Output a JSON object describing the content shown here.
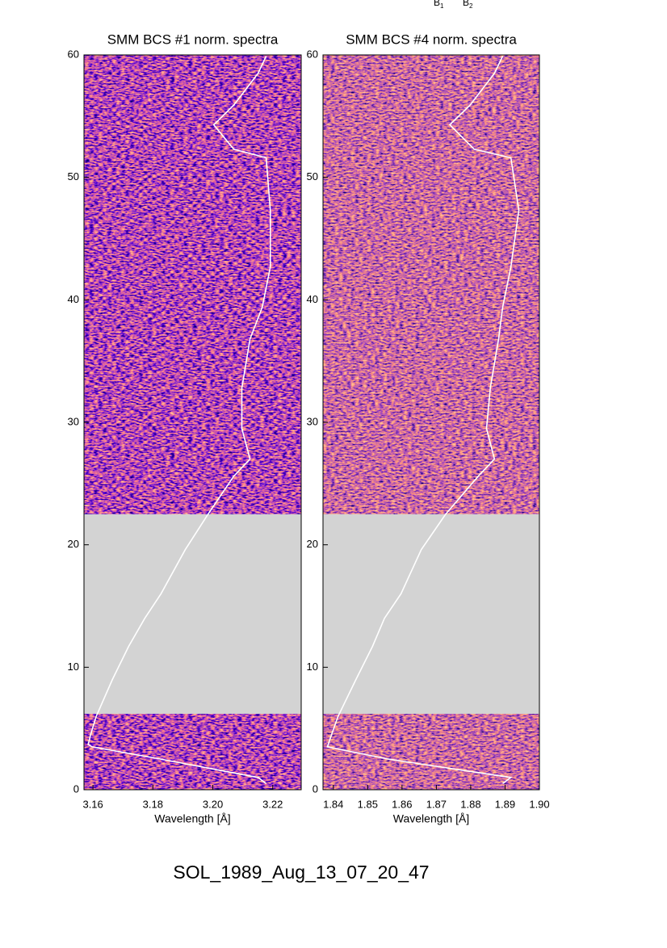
{
  "annotations": [
    {
      "text": "B",
      "sub": "1"
    },
    {
      "text": "B",
      "sub": "2"
    }
  ],
  "footer": "SOL_1989_Aug_13_07_20_47",
  "chart_data": [
    {
      "type": "line",
      "title": "SMM BCS #1 norm. spectra",
      "xlabel": "Wavelength [Å]",
      "xlim": [
        3.157,
        3.2295
      ],
      "xticks": [
        3.16,
        3.18,
        {
          "value": 3.2,
          "label": "3.20"
        },
        3.22
      ],
      "ylim": [
        0,
        60
      ],
      "yticks": [
        0,
        10,
        20,
        30,
        40,
        50,
        60
      ],
      "gap": [
        6.2,
        22.5
      ],
      "gap_color": "#d3d3d3",
      "series": [
        {
          "color": "#ffffff",
          "y": [
            0.5,
            1.0,
            1.5,
            2.5,
            3.5,
            3.7,
            4.5,
            6.0,
            9.0,
            11.7,
            14,
            16,
            19.6,
            22.5,
            25.6,
            27,
            29.5,
            32.8,
            36.8,
            39.4,
            42.7,
            47.3,
            51.6,
            52.3,
            54.3,
            55.9,
            58.5,
            59.9
          ],
          "x": [
            3.2178,
            3.2151,
            3.2043,
            3.1827,
            3.1597,
            3.1584,
            3.1592,
            3.1611,
            3.1665,
            3.1719,
            3.1773,
            3.1827,
            3.1908,
            3.1984,
            3.207,
            3.2124,
            3.2097,
            3.2097,
            3.2124,
            3.2165,
            3.2192,
            3.2192,
            3.2178,
            3.207,
            3.2003,
            3.207,
            3.2151,
            3.2178
          ]
        }
      ]
    },
    {
      "type": "line",
      "title": "SMM BCS #4 norm. spectra",
      "xlabel": "Wavelength [Å]",
      "xlim": [
        1.837,
        1.9
      ],
      "xticks": [
        1.84,
        1.85,
        1.86,
        1.87,
        1.88,
        1.89,
        {
          "value": 1.9,
          "label": "1.90"
        }
      ],
      "ylim": [
        0,
        60
      ],
      "yticks": [
        0,
        10,
        20,
        30,
        40,
        50,
        60
      ],
      "gap": [
        6.2,
        22.5
      ],
      "gap_color": "#d3d3d3",
      "series": [
        {
          "color": "#ffffff",
          "y": [
            0.5,
            1.0,
            1.5,
            2.5,
            3.5,
            4.5,
            6.0,
            9.0,
            11.7,
            14,
            16,
            19.6,
            22.5,
            25.6,
            27,
            29.5,
            32.8,
            36.8,
            39.4,
            42.7,
            47.3,
            51.6,
            52.3,
            54.3,
            55.9,
            58.5,
            59.9
          ],
          "x": [
            1.8893,
            1.8917,
            1.8798,
            1.8561,
            1.8383,
            1.8395,
            1.8414,
            1.8466,
            1.8514,
            1.8549,
            1.8597,
            1.8656,
            1.8727,
            1.8822,
            1.8869,
            1.8846,
            1.8857,
            1.8881,
            1.8893,
            1.8917,
            1.894,
            1.8917,
            1.881,
            1.8739,
            1.8798,
            1.8869,
            1.8893
          ]
        }
      ]
    }
  ]
}
